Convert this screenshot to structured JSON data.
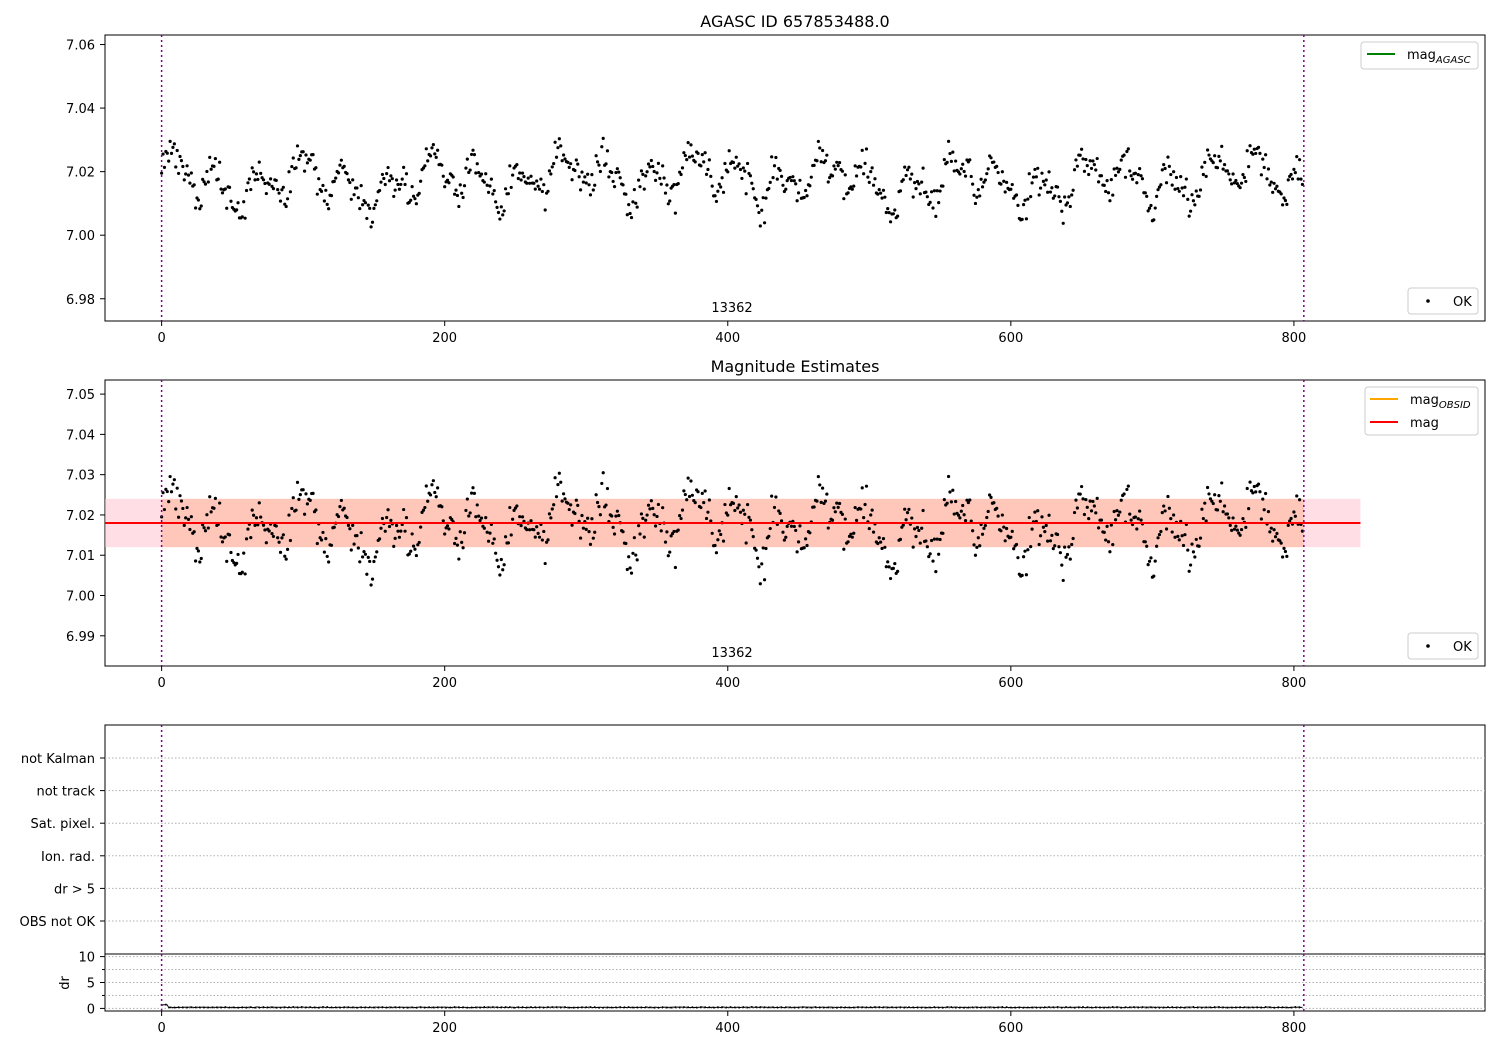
{
  "colors": {
    "points": "#000000",
    "agasc_line": "#008000",
    "obsid_line": "#ffa500",
    "mag_line": "#ff0000",
    "mag_band": "#ffc0cb",
    "obsid_band": "#ffa07a",
    "obsid_marker": "#800080",
    "grid": "#b0b0b0"
  },
  "chart_data": [
    {
      "type": "scatter",
      "title": "AGASC ID 657853488.0",
      "xlim": [
        -40,
        935
      ],
      "ylim": [
        6.973,
        7.063
      ],
      "xticks": [
        0,
        200,
        400,
        600,
        800
      ],
      "yticks": [
        6.98,
        7.0,
        7.02,
        7.04,
        7.06
      ],
      "ytick_labels": [
        "6.98",
        "7.00",
        "7.02",
        "7.04",
        "7.06"
      ],
      "obsid_bounds": [
        0,
        807
      ],
      "obsid_label": "13362",
      "obsid_label_x": 404,
      "legend_lines": [
        {
          "label": "mag",
          "sub": "AGASC",
          "color_key": "agasc_line"
        }
      ],
      "legend_points": [
        {
          "label": "OK"
        }
      ],
      "series": {
        "name": "OK",
        "n": 807,
        "mean": 7.0175
      }
    },
    {
      "type": "scatter",
      "title": "Magnitude Estimates",
      "xlim": [
        -40,
        935
      ],
      "ylim": [
        6.9825,
        7.0535
      ],
      "xticks": [
        0,
        200,
        400,
        600,
        800
      ],
      "yticks": [
        6.99,
        7.0,
        7.01,
        7.02,
        7.03,
        7.04,
        7.05
      ],
      "ytick_labels": [
        "6.99",
        "7.00",
        "7.01",
        "7.02",
        "7.03",
        "7.04",
        "7.05"
      ],
      "obsid_bounds": [
        0,
        807
      ],
      "obsid_label": "13362",
      "obsid_label_x": 404,
      "mag": 7.018,
      "mag_band": [
        7.012,
        7.024
      ],
      "mag_xrange": [
        -40,
        847
      ],
      "obsid_mag": 7.018,
      "obsid_band": [
        7.012,
        7.024
      ],
      "obsid_xrange": [
        0,
        807
      ],
      "legend_lines": [
        {
          "label": "mag",
          "sub": "OBSID",
          "color_key": "obsid_line"
        },
        {
          "label": "mag",
          "sub": "",
          "color_key": "mag_line"
        }
      ],
      "legend_points": [
        {
          "label": "OK"
        }
      ],
      "series": {
        "name": "OK",
        "n": 807,
        "mean": 7.0175
      }
    },
    {
      "type": "scatter",
      "title": "",
      "xlim": [
        -40,
        935
      ],
      "categories": [
        "not Kalman",
        "not track",
        "Sat. pixel.",
        "Ion. rad.",
        "dr > 5",
        "OBS not OK"
      ],
      "obsid_bounds": [
        0,
        807
      ],
      "points": []
    },
    {
      "type": "line",
      "title": "",
      "ylabel": "dr",
      "xlim": [
        -40,
        935
      ],
      "ylim": [
        -0.5,
        10.5
      ],
      "xticks": [
        0,
        200,
        400,
        600,
        800
      ],
      "yticks": [
        0,
        5,
        10
      ],
      "ytick_labels": [
        "0",
        "5",
        "10"
      ],
      "obsid_bounds": [
        0,
        807
      ],
      "series": {
        "name": "dr",
        "n": 807,
        "mean": 0.2
      }
    }
  ]
}
